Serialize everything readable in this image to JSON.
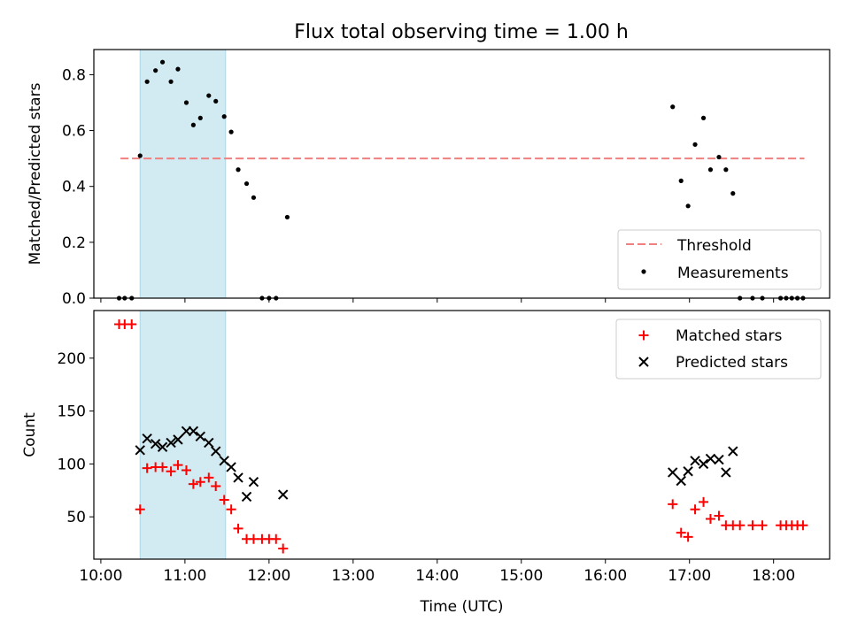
{
  "title": "Flux total observing time = 1.00 h",
  "colors": {
    "measurement": "#000000",
    "threshold": "#f08080",
    "matched": "#ff0000",
    "predicted": "#000000",
    "shade": "#add8e6"
  },
  "chart_data": [
    {
      "type": "scatter",
      "ylabel": "Matched/Predicted stars",
      "xlabel": "",
      "ylim": [
        0,
        0.89
      ],
      "yticks": [
        0.0,
        0.2,
        0.4,
        0.6,
        0.8
      ],
      "xlim": [
        "09:55",
        "18:40"
      ],
      "shaded_interval": [
        "10:28",
        "11:29"
      ],
      "legend_position": "lower-right",
      "threshold": {
        "name": "Threshold",
        "value": 0.5,
        "x_range": [
          "10:14",
          "18:22"
        ]
      },
      "series": [
        {
          "name": "Measurements",
          "points": [
            [
              "10:13",
              0.0
            ],
            [
              "10:17",
              0.0
            ],
            [
              "10:22",
              0.0
            ],
            [
              "10:28",
              0.51
            ],
            [
              "10:33",
              0.775
            ],
            [
              "10:39",
              0.815
            ],
            [
              "10:44",
              0.845
            ],
            [
              "10:50",
              0.775
            ],
            [
              "10:55",
              0.82
            ],
            [
              "11:01",
              0.7
            ],
            [
              "11:06",
              0.62
            ],
            [
              "11:11",
              0.645
            ],
            [
              "11:17",
              0.725
            ],
            [
              "11:22",
              0.705
            ],
            [
              "11:28",
              0.65
            ],
            [
              "11:33",
              0.595
            ],
            [
              "11:38",
              0.46
            ],
            [
              "11:44",
              0.41
            ],
            [
              "11:49",
              0.36
            ],
            [
              "11:55",
              0.0
            ],
            [
              "12:00",
              0.0
            ],
            [
              "12:05",
              0.0
            ],
            [
              "12:13",
              0.29
            ],
            [
              "16:48",
              0.685
            ],
            [
              "16:54",
              0.42
            ],
            [
              "16:59",
              0.33
            ],
            [
              "17:04",
              0.55
            ],
            [
              "17:10",
              0.645
            ],
            [
              "17:15",
              0.46
            ],
            [
              "17:21",
              0.505
            ],
            [
              "17:26",
              0.46
            ],
            [
              "17:31",
              0.375
            ],
            [
              "17:36",
              0.0
            ],
            [
              "17:45",
              0.0
            ],
            [
              "17:52",
              0.0
            ],
            [
              "18:05",
              0.0
            ],
            [
              "18:09",
              0.0
            ],
            [
              "18:13",
              0.0
            ],
            [
              "18:17",
              0.0
            ],
            [
              "18:21",
              0.0
            ]
          ]
        }
      ]
    },
    {
      "type": "scatter",
      "ylabel": "Count",
      "xlabel": "Time (UTC)",
      "ylim": [
        10,
        245
      ],
      "yticks": [
        50,
        100,
        150,
        200
      ],
      "xlim": [
        "09:55",
        "18:40"
      ],
      "xticks": [
        "10:00",
        "11:00",
        "12:00",
        "13:00",
        "14:00",
        "15:00",
        "16:00",
        "17:00",
        "18:00"
      ],
      "shaded_interval": [
        "10:28",
        "11:29"
      ],
      "legend_position": "upper-right",
      "series": [
        {
          "name": "Matched stars",
          "marker": "plus",
          "points": [
            [
              "10:13",
              232
            ],
            [
              "10:17",
              232
            ],
            [
              "10:22",
              232
            ],
            [
              "10:28",
              57
            ],
            [
              "10:33",
              96
            ],
            [
              "10:39",
              97
            ],
            [
              "10:44",
              97
            ],
            [
              "10:50",
              93
            ],
            [
              "10:55",
              99
            ],
            [
              "11:01",
              94
            ],
            [
              "11:06",
              81
            ],
            [
              "11:11",
              83
            ],
            [
              "11:17",
              87
            ],
            [
              "11:22",
              79
            ],
            [
              "11:28",
              66
            ],
            [
              "11:33",
              57
            ],
            [
              "11:38",
              39
            ],
            [
              "11:44",
              29
            ],
            [
              "11:49",
              29
            ],
            [
              "11:55",
              29
            ],
            [
              "12:00",
              29
            ],
            [
              "12:05",
              29
            ],
            [
              "12:10",
              20
            ],
            [
              "16:48",
              62
            ],
            [
              "16:54",
              35
            ],
            [
              "16:59",
              31
            ],
            [
              "17:04",
              57
            ],
            [
              "17:10",
              64
            ],
            [
              "17:15",
              48
            ],
            [
              "17:21",
              51
            ],
            [
              "17:26",
              42
            ],
            [
              "17:31",
              42
            ],
            [
              "17:36",
              42
            ],
            [
              "17:45",
              42
            ],
            [
              "17:52",
              42
            ],
            [
              "18:05",
              42
            ],
            [
              "18:09",
              42
            ],
            [
              "18:13",
              42
            ],
            [
              "18:17",
              42
            ],
            [
              "18:21",
              42
            ]
          ]
        },
        {
          "name": "Predicted stars",
          "marker": "x",
          "points": [
            [
              "10:28",
              113
            ],
            [
              "10:33",
              124
            ],
            [
              "10:39",
              119
            ],
            [
              "10:44",
              116
            ],
            [
              "10:50",
              120
            ],
            [
              "10:55",
              123
            ],
            [
              "11:01",
              131
            ],
            [
              "11:06",
              131
            ],
            [
              "11:11",
              126
            ],
            [
              "11:17",
              120
            ],
            [
              "11:22",
              112
            ],
            [
              "11:28",
              103
            ],
            [
              "11:33",
              97
            ],
            [
              "11:38",
              87
            ],
            [
              "11:44",
              69
            ],
            [
              "11:49",
              83
            ],
            [
              "12:10",
              71
            ],
            [
              "16:48",
              92
            ],
            [
              "16:54",
              84
            ],
            [
              "16:59",
              93
            ],
            [
              "17:04",
              103
            ],
            [
              "17:10",
              100
            ],
            [
              "17:15",
              105
            ],
            [
              "17:21",
              104
            ],
            [
              "17:26",
              92
            ],
            [
              "17:31",
              112
            ]
          ]
        }
      ]
    }
  ]
}
